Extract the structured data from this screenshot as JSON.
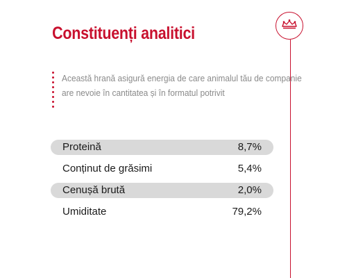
{
  "header": {
    "title": "Constituenți analitici"
  },
  "brand": {
    "icon": "crown-icon",
    "accent_color": "#c8102e"
  },
  "description": {
    "line1": "Această hrană asigură energia de care animalul tău de companie",
    "line2": "are nevoie în cantitatea și în formatul potrivit"
  },
  "constituents": [
    {
      "label": "Proteină",
      "value": "8,7%"
    },
    {
      "label": "Conținut de grăsimi",
      "value": "5,4%"
    },
    {
      "label": "Cenușă brută",
      "value": "2,0%"
    },
    {
      "label": "Umiditate",
      "value": "79,2%"
    }
  ]
}
